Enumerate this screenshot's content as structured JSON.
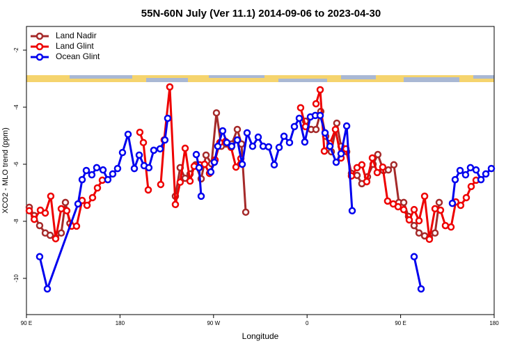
{
  "chart_data": {
    "type": "line",
    "title": "55N-60N July (Ver 11.1)   2014-09-06 to 2023-04-30",
    "x_label": "Longitude",
    "y_label": "XCO2 - MLO trend (ppm)",
    "xlim": [
      90,
      540
    ],
    "ylim": [
      -11.27,
      -1.17
    ],
    "xticks": [
      {
        "value": 90,
        "label": "90 E"
      },
      {
        "value": 180,
        "label": "180"
      },
      {
        "value": 270,
        "label": "90 W"
      },
      {
        "value": 360,
        "label": "0"
      },
      {
        "value": 450,
        "label": "90 E"
      },
      {
        "value": 540,
        "label": "180"
      }
    ],
    "yticks": [
      -2,
      -4,
      -6,
      -8,
      -10
    ],
    "legend": "top-left",
    "series": [
      {
        "name": "Land Nadir",
        "color": "#a52a2a",
        "x": [
          92.7,
          97.5,
          102.7,
          108.1,
          112.8,
          118.1,
          123.5,
          127.5,
          131.8,
          null,
          233.3,
          237.9,
          242.7,
          247.4,
          252.7,
          258.1,
          262.8,
          268.1,
          272.8,
          277.5,
          282.2,
          287.5,
          292.9,
          296.9,
          301.0,
          null,
          358.5,
          363.9,
          368.6,
          373.2,
          377.9,
          383.3,
          388.6,
          392.7,
          398.1,
          402.7,
          408.1,
          412.7,
          418.1,
          423.5,
          428.1,
          433.5,
          438.2,
          443.5,
          448.3,
          453.0,
          457.6,
          463.0,
          467.7,
          473.1,
          477.7,
          483.1,
          487.1
        ],
        "values": [
          -7.51,
          -7.8,
          -8.15,
          -8.41,
          -8.49,
          -8.59,
          -8.41,
          -7.34,
          -8.07,
          null,
          -7.12,
          -6.12,
          -6.49,
          -6.34,
          -6.02,
          -6.51,
          -5.68,
          -5.98,
          -4.2,
          -5.37,
          -5.29,
          -5.29,
          -4.78,
          -5.29,
          -7.68,
          null,
          -4.49,
          -4.78,
          -4.78,
          -4.15,
          -5.02,
          -5.56,
          -4.56,
          -5.37,
          -5.56,
          -6.32,
          -6.39,
          -6.68,
          -6.44,
          -6.0,
          -5.66,
          -6.22,
          -6.2,
          -6.02,
          -7.34,
          -7.34,
          -7.83,
          -8.15,
          -8.41,
          -8.51,
          -8.59,
          -8.41,
          -7.34
        ]
      },
      {
        "name": "Land Glint",
        "color": "#ee0000",
        "x": [
          92.7,
          97.5,
          103.4,
          108.1,
          113.4,
          118.1,
          123.5,
          128.8,
          133.5,
          138.2,
          143.6,
          148.3,
          153.6,
          158.3,
          163.0,
          null,
          199.1,
          202.5,
          207.2,
          null,
          219.2,
          222.5,
          227.9,
          233.3,
          237.9,
          242.7,
          247.4,
          251.4,
          256.7,
          261.4,
          266.1,
          271.5,
          276.1,
          281.5,
          286.9,
          291.6,
          296.3,
          null,
          353.8,
          358.5,
          null,
          368.6,
          372.6,
          376.6,
          382.0,
          387.3,
          392.7,
          397.4,
          402.7,
          408.1,
          412.7,
          417.4,
          422.8,
          427.5,
          432.8,
          437.5,
          442.9,
          447.6,
          453.0,
          458.3,
          463.0,
          467.7,
          473.1,
          477.7,
          483.1,
          488.4,
          493.1,
          498.5,
          503.1,
          507.8,
          513.2,
          517.9,
          522.6
        ],
        "values": [
          -7.63,
          -7.93,
          -7.61,
          -7.71,
          -7.12,
          -8.61,
          -7.56,
          -7.63,
          -8.17,
          -8.17,
          -7.27,
          -7.44,
          -7.17,
          -6.83,
          -6.56,
          null,
          -4.88,
          -5.24,
          -6.9,
          null,
          -6.71,
          -5.15,
          -3.29,
          -7.41,
          -6.63,
          -5.44,
          -6.59,
          -6.07,
          -6.02,
          -6.0,
          -6.32,
          -5.85,
          -5.24,
          -5.2,
          -5.41,
          -6.1,
          -5.8,
          null,
          -4.02,
          -4.68,
          null,
          -3.88,
          -3.39,
          -5.54,
          -5.27,
          -4.78,
          -5.78,
          -5.46,
          -6.41,
          -6.12,
          -6.02,
          -6.61,
          -5.78,
          -6.29,
          -6.1,
          -7.29,
          -7.39,
          -7.49,
          -7.59,
          -7.95,
          -7.59,
          -7.98,
          -7.12,
          -8.63,
          -7.56,
          -7.61,
          -8.15,
          -8.2,
          -7.32,
          -7.44,
          -7.17,
          -6.78,
          -6.56
        ]
      },
      {
        "name": "Ocean Glint",
        "color": "#0000ee",
        "x": [
          102.7,
          110.1,
          139.6,
          143.6,
          147.6,
          152.9,
          157.6,
          163.7,
          168.3,
          173.0,
          177.7,
          182.4,
          187.8,
          193.8,
          198.5,
          203.2,
          207.8,
          212.5,
          218.6,
          223.2,
          225.9,
          null,
          253.4,
          256.1,
          258.1,
          null,
          267.4,
          270.8,
          274.1,
          278.8,
          282.8,
          287.5,
          292.9,
          297.6,
          302.3,
          307.6,
          313.0,
          317.7,
          323.0,
          328.4,
          333.1,
          337.8,
          343.1,
          347.8,
          352.5,
          357.8,
          363.2,
          367.9,
          372.6,
          377.3,
          382.0,
          388.0,
          392.7,
          398.1,
          403.4,
          null,
          463.0,
          469.7,
          null,
          499.8,
          502.5,
          507.2,
          512.5,
          517.2,
          522.6,
          527.3,
          532.0,
          537.3
        ],
        "values": [
          -9.24,
          -10.37,
          -7.39,
          -6.54,
          -6.22,
          -6.37,
          -6.12,
          -6.2,
          -6.54,
          -6.34,
          -6.15,
          -5.59,
          -4.95,
          -6.15,
          -5.68,
          -6.05,
          -6.12,
          -5.51,
          -5.46,
          -5.15,
          -4.39,
          null,
          -5.66,
          -6.12,
          -7.12,
          null,
          -6.27,
          -5.93,
          -5.37,
          -4.83,
          -5.24,
          -5.37,
          -5.15,
          -6.0,
          -4.9,
          -5.37,
          -5.05,
          -5.37,
          -5.39,
          -6.02,
          -5.41,
          -5.02,
          -5.24,
          -4.68,
          -4.39,
          -5.22,
          -4.34,
          -4.29,
          -4.29,
          -4.9,
          -5.37,
          -5.93,
          -5.63,
          -4.66,
          -7.63,
          null,
          -9.24,
          -10.37,
          null,
          -7.37,
          -6.54,
          -6.22,
          -6.37,
          -6.12,
          -6.2,
          -6.54,
          -6.34,
          -6.15
        ]
      }
    ]
  }
}
